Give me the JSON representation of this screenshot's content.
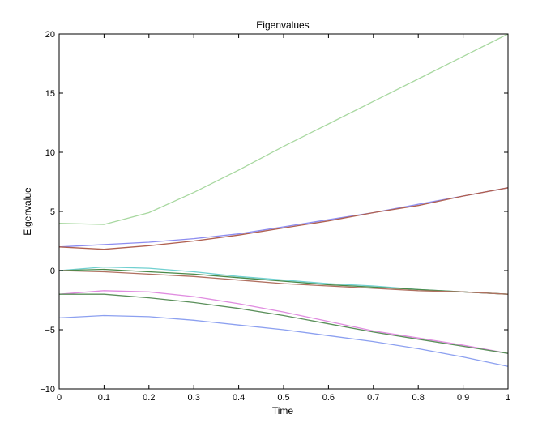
{
  "chart_data": {
    "type": "line",
    "title": "Eigenvalues",
    "xlabel": "Time",
    "ylabel": "Eigenvalue",
    "xlim": [
      0,
      1
    ],
    "ylim": [
      -10,
      20
    ],
    "xticks": [
      0,
      0.1,
      0.2,
      0.3,
      0.4,
      0.5,
      0.6,
      0.7,
      0.8,
      0.9,
      1
    ],
    "xtick_labels": [
      "0",
      "0.1",
      "0.2",
      "0.3",
      "0.4",
      "0.5",
      "0.6",
      "0.7",
      "0.8",
      "0.9",
      "1"
    ],
    "yticks": [
      -10,
      -5,
      0,
      5,
      10,
      15,
      20
    ],
    "ytick_labels": [
      "−10",
      "−5",
      "0",
      "5",
      "10",
      "15",
      "20"
    ],
    "grid": false,
    "x": [
      0,
      0.1,
      0.2,
      0.3,
      0.4,
      0.5,
      0.6,
      0.7,
      0.8,
      0.9,
      1.0
    ],
    "series": [
      {
        "color": "#a8d8a0",
        "values": [
          4.0,
          3.9,
          4.9,
          6.6,
          8.5,
          10.5,
          12.4,
          14.3,
          16.2,
          18.1,
          20.0
        ]
      },
      {
        "color": "#8c8cf0",
        "values": [
          2.0,
          2.2,
          2.4,
          2.7,
          3.1,
          3.7,
          4.3,
          4.9,
          5.6,
          6.3,
          7.0
        ]
      },
      {
        "color": "#b06050",
        "values": [
          2.0,
          1.8,
          2.1,
          2.5,
          3.0,
          3.6,
          4.2,
          4.9,
          5.5,
          6.3,
          7.0
        ]
      },
      {
        "color": "#70d0d0",
        "values": [
          0.0,
          0.3,
          0.2,
          -0.1,
          -0.5,
          -0.8,
          -1.1,
          -1.3,
          -1.6,
          -1.8,
          -2.0
        ]
      },
      {
        "color": "#4a8a4a",
        "values": [
          0.0,
          0.1,
          -0.1,
          -0.3,
          -0.6,
          -0.9,
          -1.2,
          -1.4,
          -1.6,
          -1.8,
          -2.0
        ]
      },
      {
        "color": "#b07060",
        "values": [
          0.0,
          -0.1,
          -0.3,
          -0.5,
          -0.8,
          -1.1,
          -1.3,
          -1.5,
          -1.7,
          -1.8,
          -2.0
        ]
      },
      {
        "color": "#e08ce0",
        "values": [
          -2.0,
          -1.7,
          -1.8,
          -2.2,
          -2.8,
          -3.5,
          -4.3,
          -5.1,
          -5.7,
          -6.3,
          -7.0
        ]
      },
      {
        "color": "#5a8f5a",
        "values": [
          -2.0,
          -2.0,
          -2.3,
          -2.7,
          -3.2,
          -3.8,
          -4.5,
          -5.2,
          -5.8,
          -6.4,
          -7.0
        ]
      },
      {
        "color": "#8ca0f0",
        "values": [
          -4.0,
          -3.8,
          -3.9,
          -4.2,
          -4.6,
          -5.0,
          -5.5,
          -6.0,
          -6.6,
          -7.3,
          -8.1
        ]
      }
    ]
  }
}
